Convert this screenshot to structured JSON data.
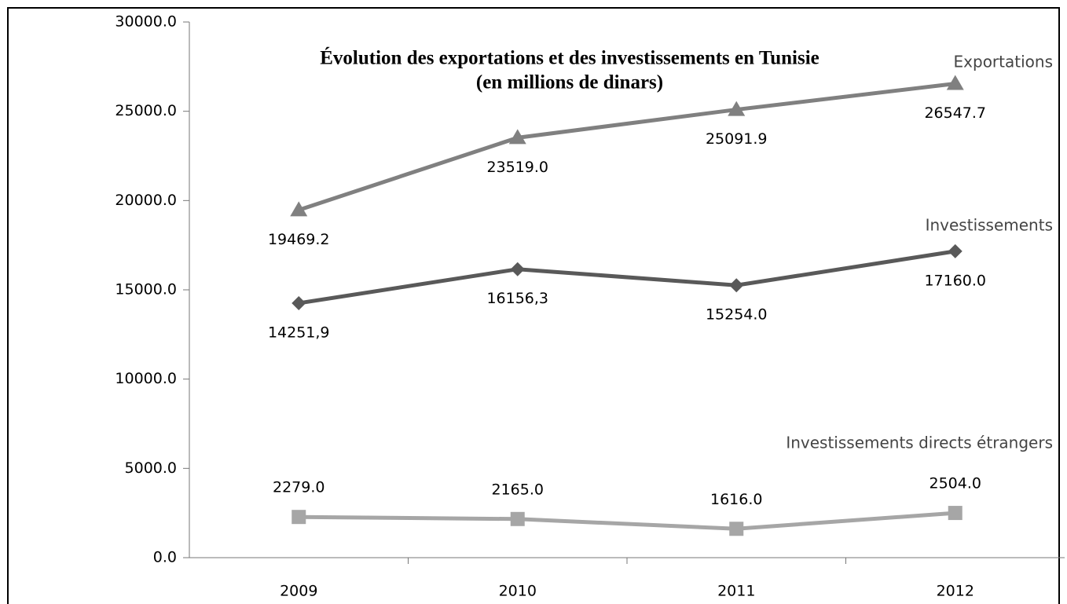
{
  "chart_data": {
    "type": "line",
    "title": [
      "Évolution des exportations et des investissements en Tunisie",
      "(en millions de dinars)"
    ],
    "categories": [
      "2009",
      "2010",
      "2011",
      "2012"
    ],
    "series": [
      {
        "name": "Exportations",
        "color": "#808080",
        "marker": "triangle",
        "label_position": "below",
        "values": [
          19469.2,
          23519.0,
          25091.9,
          26547.7
        ],
        "value_labels": [
          "19469.2",
          "23519.0",
          "25091.9",
          "26547.7"
        ]
      },
      {
        "name": "Investissements",
        "color": "#595959",
        "marker": "diamond",
        "label_position": "below",
        "values": [
          14251.9,
          16156.3,
          15254.0,
          17160.0
        ],
        "value_labels": [
          "14251,9",
          "16156,3",
          "15254.0",
          "17160.0"
        ]
      },
      {
        "name": "Investissements directs étrangers",
        "color": "#a6a6a6",
        "marker": "square",
        "label_position": "above",
        "values": [
          2279.0,
          2165.0,
          1616.0,
          2504.0
        ],
        "value_labels": [
          "2279.0",
          "2165.0",
          "1616.0",
          "2504.0"
        ]
      }
    ],
    "ylim": [
      0,
      30000
    ],
    "yticks": [
      {
        "value": 0,
        "label": "0.0"
      },
      {
        "value": 5000,
        "label": "5000.0"
      },
      {
        "value": 10000,
        "label": "10000.0"
      },
      {
        "value": 15000,
        "label": "15000.0"
      },
      {
        "value": 20000,
        "label": "20000.0"
      },
      {
        "value": 25000,
        "label": "25000.0"
      },
      {
        "value": 30000,
        "label": "30000.0"
      }
    ],
    "grid": false
  }
}
